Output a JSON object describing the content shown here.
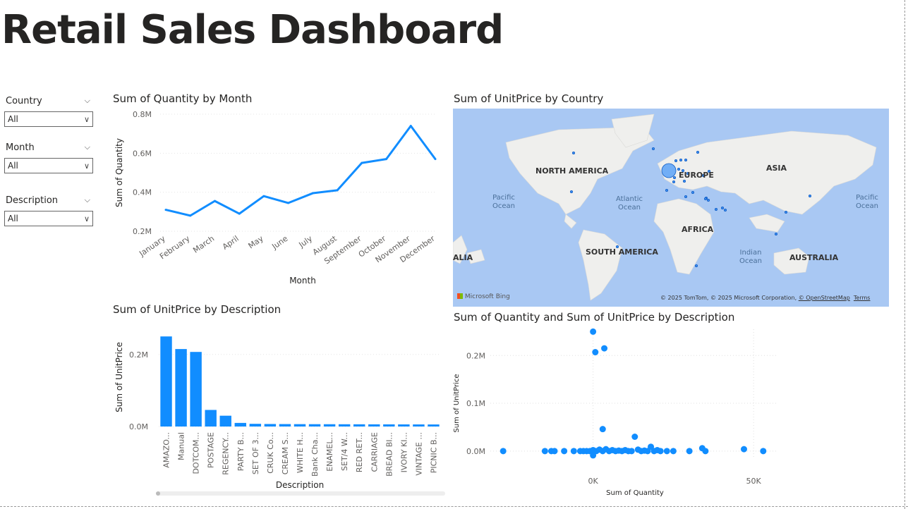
{
  "header": {
    "title": "Retail Sales Dashboard"
  },
  "slicers": [
    {
      "label": "Country",
      "value": "All"
    },
    {
      "label": "Month",
      "value": "All"
    },
    {
      "label": "Description",
      "value": "All"
    }
  ],
  "line_chart": {
    "title": "Sum of Quantity by Month",
    "xlabel": "Month",
    "ylabel": "Sum of Quantity",
    "yticks": [
      "0.8M",
      "0.6M",
      "0.4M",
      "0.2M"
    ],
    "color": "#118DFF"
  },
  "map": {
    "title": "Sum of UnitPrice by Country",
    "continents": [
      "NORTH AMERICA",
      "EUROPE",
      "ASIA",
      "AFRICA",
      "SOUTH AMERICA",
      "AUSTRALIA",
      "ALIA"
    ],
    "oceans": [
      "Pacific Ocean",
      "Atlantic Ocean",
      "Indian Ocean",
      "Pacific Ocean"
    ],
    "brand": "Microsoft Bing",
    "copyright": "© 2025 TomTom, © 2025 Microsoft Corporation,",
    "osm": "© OpenStreetMap",
    "terms": "Terms"
  },
  "bar_chart": {
    "title": "Sum of UnitPrice by Description",
    "xlabel": "Description",
    "ylabel": "Sum of UnitPrice",
    "yticks": [
      "0.2M",
      "0.0M"
    ],
    "color": "#118DFF"
  },
  "scatter_chart": {
    "title": "Sum of Quantity and Sum of UnitPrice by Description",
    "xlabel": "Sum of Quantity",
    "ylabel": "Sum of UnitPrice",
    "yticks": [
      "0.2M",
      "0.1M",
      "0.0M"
    ],
    "xticks": [
      "0K",
      "50K"
    ],
    "color": "#118DFF"
  },
  "chart_data": [
    {
      "type": "line",
      "title": "Sum of Quantity by Month",
      "xlabel": "Month",
      "ylabel": "Sum of Quantity",
      "categories": [
        "January",
        "February",
        "March",
        "April",
        "May",
        "June",
        "July",
        "August",
        "September",
        "October",
        "November",
        "December"
      ],
      "values": [
        310000,
        280000,
        355000,
        290000,
        380000,
        345000,
        395000,
        410000,
        550000,
        570000,
        740000,
        570000
      ],
      "ylim": [
        200000,
        800000
      ]
    },
    {
      "type": "bar",
      "title": "Sum of UnitPrice by Description",
      "xlabel": "Description",
      "ylabel": "Sum of UnitPrice",
      "categories": [
        "AMAZO...",
        "Manual",
        "DOTCOM...",
        "POSTAGE",
        "REGENCY...",
        "PARTY B...",
        "SET OF 3...",
        "CRUK Co...",
        "CREAM S...",
        "WHITE H...",
        "Bank Cha...",
        "ENAMEL...",
        "SET/4 W...",
        "RED RET...",
        "CARRIAGE",
        "BREAD BI...",
        "IVORY KI...",
        "VINTAGE ...",
        "PICNIC B..."
      ],
      "values": [
        250000,
        215000,
        207000,
        46000,
        30000,
        10000,
        7500,
        7000,
        6800,
        6600,
        6500,
        6400,
        6300,
        6200,
        6100,
        6000,
        5900,
        5800,
        5700
      ],
      "ylim": [
        0,
        270000
      ]
    },
    {
      "type": "scatter",
      "title": "Sum of Quantity and Sum of UnitPrice by Description",
      "xlabel": "Sum of Quantity",
      "ylabel": "Sum of UnitPrice",
      "points": [
        [
          0,
          250000
        ],
        [
          700,
          207000
        ],
        [
          3500,
          215000
        ],
        [
          3000,
          46000
        ],
        [
          13000,
          30000
        ],
        [
          -28000,
          0
        ],
        [
          -15000,
          0
        ],
        [
          -13000,
          0
        ],
        [
          -12000,
          0
        ],
        [
          -9000,
          0
        ],
        [
          -6000,
          0
        ],
        [
          -4000,
          0
        ],
        [
          -3000,
          0
        ],
        [
          -2000,
          0
        ],
        [
          -1000,
          0
        ],
        [
          0,
          2000
        ],
        [
          1000,
          0
        ],
        [
          2000,
          3000
        ],
        [
          3000,
          0
        ],
        [
          4000,
          4000
        ],
        [
          5000,
          0
        ],
        [
          6000,
          2000
        ],
        [
          7000,
          0
        ],
        [
          8000,
          1000
        ],
        [
          9000,
          0
        ],
        [
          10000,
          2000
        ],
        [
          11000,
          0
        ],
        [
          12000,
          0
        ],
        [
          14000,
          3000
        ],
        [
          15000,
          0
        ],
        [
          16000,
          1000
        ],
        [
          17000,
          0
        ],
        [
          18000,
          9000
        ],
        [
          19000,
          0
        ],
        [
          20000,
          2000
        ],
        [
          21000,
          0
        ],
        [
          23000,
          0
        ],
        [
          25000,
          0
        ],
        [
          30000,
          0
        ],
        [
          34000,
          6000
        ],
        [
          35000,
          0
        ],
        [
          47000,
          4000
        ],
        [
          53000,
          0
        ],
        [
          0,
          -9000
        ]
      ],
      "xlim": [
        -32000,
        57000
      ],
      "ylim": [
        -15000,
        255000
      ]
    }
  ]
}
